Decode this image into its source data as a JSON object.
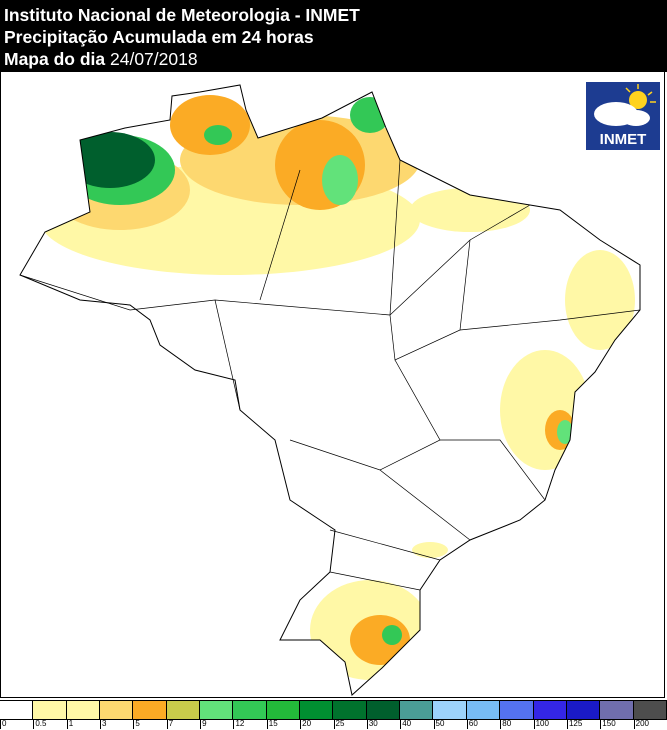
{
  "header": {
    "line1": "Instituto Nacional de Meteorologia - INMET",
    "line2": "Precipitação Acumulada em 24 horas",
    "line3_label": "Mapa do dia",
    "date": "24/07/2018"
  },
  "logo": {
    "text": "INMET"
  },
  "legend": {
    "unit_breaks": [
      "0",
      "0.5",
      "1",
      "3",
      "5",
      "7",
      "9",
      "12",
      "15",
      "20",
      "25",
      "30",
      "40",
      "50",
      "60",
      "80",
      "100",
      "125",
      "150",
      "200"
    ],
    "colors": [
      "#ffffff",
      "#fff8a6",
      "#fff8a6",
      "#fdd870",
      "#fbab25",
      "#c9cb4b",
      "#62e27a",
      "#33c856",
      "#23b93a",
      "#008f31",
      "#00722d",
      "#005f2d",
      "#4a9e96",
      "#9dd3fb",
      "#78bcf5",
      "#5472f0",
      "#3426e6",
      "#1a1ac7",
      "#706ead",
      "#4d4d4d"
    ]
  }
}
